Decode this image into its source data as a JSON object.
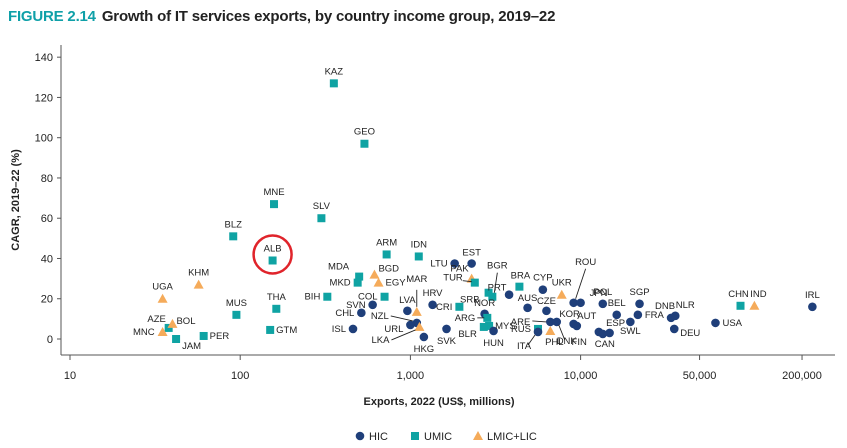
{
  "figure": {
    "number": "FIGURE 2.14",
    "title": "Growth of IT services exports, by country income group, 2019–22"
  },
  "chart_data": {
    "type": "scatter",
    "title": "Growth of IT services exports, by country income group, 2019–22",
    "xlabel": "Exports, 2022 (US$, millions)",
    "ylabel": "CAGR, 2019–22 (%)",
    "xscale": "log",
    "xlim": [
      10,
      230000
    ],
    "ylim": [
      -8,
      145
    ],
    "xticks": [
      10,
      100,
      1000,
      10000,
      50000,
      200000
    ],
    "xtick_labels": [
      "10",
      "100",
      "1,000",
      "10,000",
      "50,000",
      "200,000"
    ],
    "yticks": [
      0,
      20,
      40,
      60,
      80,
      100,
      120,
      140
    ],
    "ytick_labels": [
      "0",
      "20",
      "40",
      "60",
      "80",
      "100",
      "120",
      "140"
    ],
    "grid": false,
    "legend_position": "bottom-center",
    "highlight": {
      "code": "ALB",
      "style": "red-circle",
      "color": "#e0242b"
    },
    "groups": [
      {
        "name": "HIC",
        "marker": "circle",
        "color": "#1f3f7a"
      },
      {
        "name": "UMIC",
        "marker": "square",
        "color": "#0fa3a3"
      },
      {
        "name": "LMIC+LIC",
        "marker": "triangle",
        "color": "#f5ab5a"
      }
    ],
    "points": [
      {
        "code": "KAZ",
        "group": "UMIC",
        "x": 355,
        "y": 127
      },
      {
        "code": "GEO",
        "group": "UMIC",
        "x": 537,
        "y": 97
      },
      {
        "code": "MNE",
        "group": "UMIC",
        "x": 158,
        "y": 67
      },
      {
        "code": "SLV",
        "group": "UMIC",
        "x": 300,
        "y": 60
      },
      {
        "code": "BLZ",
        "group": "UMIC",
        "x": 91,
        "y": 51
      },
      {
        "code": "ALB",
        "group": "UMIC",
        "x": 155,
        "y": 39
      },
      {
        "code": "ARM",
        "group": "UMIC",
        "x": 725,
        "y": 42
      },
      {
        "code": "IDN",
        "group": "UMIC",
        "x": 1120,
        "y": 41
      },
      {
        "code": "KHM",
        "group": "LMIC+LIC",
        "x": 57,
        "y": 27
      },
      {
        "code": "UGA",
        "group": "LMIC+LIC",
        "x": 35,
        "y": 20
      },
      {
        "code": "MUS",
        "group": "UMIC",
        "x": 95,
        "y": 12
      },
      {
        "code": "THA",
        "group": "UMIC",
        "x": 163,
        "y": 15
      },
      {
        "code": "AZE",
        "group": "UMIC",
        "x": 38,
        "y": 5.5
      },
      {
        "code": "BOL",
        "group": "LMIC+LIC",
        "x": 40,
        "y": 7.5
      },
      {
        "code": "MNC",
        "group": "LMIC+LIC",
        "x": 35,
        "y": 3.5
      },
      {
        "code": "JAM",
        "group": "UMIC",
        "x": 42,
        "y": 0
      },
      {
        "code": "PER",
        "group": "UMIC",
        "x": 61,
        "y": 1.5
      },
      {
        "code": "GTM",
        "group": "UMIC",
        "x": 150,
        "y": 4.5
      },
      {
        "code": "BIH",
        "group": "UMIC",
        "x": 325,
        "y": 21
      },
      {
        "code": "MDA",
        "group": "UMIC",
        "x": 500,
        "y": 31
      },
      {
        "code": "MKD",
        "group": "UMIC",
        "x": 490,
        "y": 28
      },
      {
        "code": "BGD",
        "group": "LMIC+LIC",
        "x": 615,
        "y": 32
      },
      {
        "code": "EGY",
        "group": "LMIC+LIC",
        "x": 650,
        "y": 28
      },
      {
        "code": "COL",
        "group": "UMIC",
        "x": 705,
        "y": 21
      },
      {
        "code": "SVN",
        "group": "HIC",
        "x": 600,
        "y": 17
      },
      {
        "code": "CHL",
        "group": "HIC",
        "x": 515,
        "y": 13
      },
      {
        "code": "ISL",
        "group": "HIC",
        "x": 460,
        "y": 5
      },
      {
        "code": "LVA",
        "group": "HIC",
        "x": 960,
        "y": 14
      },
      {
        "code": "MAR",
        "group": "LMIC+LIC",
        "x": 1090,
        "y": 13.5
      },
      {
        "code": "HRV",
        "group": "HIC",
        "x": 1350,
        "y": 17
      },
      {
        "code": "NZL",
        "group": "HIC",
        "x": 1090,
        "y": 8
      },
      {
        "code": "URL",
        "group": "HIC",
        "x": 1000,
        "y": 7
      },
      {
        "code": "LKA",
        "group": "LMIC+LIC",
        "x": 1130,
        "y": 6
      },
      {
        "code": "HKG",
        "group": "HIC",
        "x": 1200,
        "y": 1
      },
      {
        "code": "SVK",
        "group": "HIC",
        "x": 1630,
        "y": 5
      },
      {
        "code": "LTU",
        "group": "HIC",
        "x": 1820,
        "y": 37.5
      },
      {
        "code": "EST",
        "group": "HIC",
        "x": 2290,
        "y": 37.5
      },
      {
        "code": "CRI",
        "group": "UMIC",
        "x": 1940,
        "y": 16
      },
      {
        "code": "PAK",
        "group": "LMIC+LIC",
        "x": 2290,
        "y": 30
      },
      {
        "code": "TUR",
        "group": "UMIC",
        "x": 2390,
        "y": 28
      },
      {
        "code": "SRB",
        "group": "UMIC",
        "x": 2880,
        "y": 23
      },
      {
        "code": "BGR",
        "group": "UMIC",
        "x": 3030,
        "y": 21
      },
      {
        "code": "PRT",
        "group": "HIC",
        "x": 3800,
        "y": 22
      },
      {
        "code": "BRA",
        "group": "UMIC",
        "x": 4370,
        "y": 26
      },
      {
        "code": "CYP",
        "group": "HIC",
        "x": 6000,
        "y": 24.5
      },
      {
        "code": "UKR",
        "group": "LMIC+LIC",
        "x": 7750,
        "y": 22
      },
      {
        "code": "AUS",
        "group": "HIC",
        "x": 4880,
        "y": 15.5
      },
      {
        "code": "CZE",
        "group": "HIC",
        "x": 6300,
        "y": 14
      },
      {
        "code": "NOR",
        "group": "HIC",
        "x": 2730,
        "y": 12.5
      },
      {
        "code": "ARG",
        "group": "UMIC",
        "x": 2830,
        "y": 10.5
      },
      {
        "code": "MYS",
        "group": "UMIC",
        "x": 2900,
        "y": 6.5
      },
      {
        "code": "BLR",
        "group": "UMIC",
        "x": 2700,
        "y": 6
      },
      {
        "code": "HUN",
        "group": "HIC",
        "x": 3080,
        "y": 4
      },
      {
        "code": "ARE",
        "group": "HIC",
        "x": 6640,
        "y": 8.5
      },
      {
        "code": "DNK",
        "group": "HIC",
        "x": 7240,
        "y": 8.5
      },
      {
        "code": "RUS",
        "group": "UMIC",
        "x": 5620,
        "y": 5
      },
      {
        "code": "ITA",
        "group": "HIC",
        "x": 5620,
        "y": 3.5
      },
      {
        "code": "PHL",
        "group": "LMIC+LIC",
        "x": 6640,
        "y": 4
      },
      {
        "code": "ROU",
        "group": "HIC",
        "x": 9100,
        "y": 18
      },
      {
        "code": "JPN",
        "group": "HIC",
        "x": 10000,
        "y": 18
      },
      {
        "code": "POL",
        "group": "HIC",
        "x": 13500,
        "y": 17.5
      },
      {
        "code": "SGP",
        "group": "HIC",
        "x": 22200,
        "y": 17.5
      },
      {
        "code": "BEL",
        "group": "HIC",
        "x": 16300,
        "y": 12
      },
      {
        "code": "FRA",
        "group": "HIC",
        "x": 21700,
        "y": 12
      },
      {
        "code": "SWL",
        "group": "HIC",
        "x": 19600,
        "y": 8.5
      },
      {
        "code": "DNB",
        "group": "HIC",
        "x": 34000,
        "y": 10.5
      },
      {
        "code": "NLR",
        "group": "HIC",
        "x": 36000,
        "y": 11.5
      },
      {
        "code": "DEU",
        "group": "HIC",
        "x": 35500,
        "y": 5
      },
      {
        "code": "KOR",
        "group": "HIC",
        "x": 9100,
        "y": 7.5
      },
      {
        "code": "AUT",
        "group": "HIC",
        "x": 9500,
        "y": 6.5
      },
      {
        "code": "ESP",
        "group": "HIC",
        "x": 14800,
        "y": 3
      },
      {
        "code": "FIN",
        "group": "HIC",
        "x": 12800,
        "y": 3.5
      },
      {
        "code": "CAN",
        "group": "HIC",
        "x": 13500,
        "y": 2.5
      },
      {
        "code": "USA",
        "group": "HIC",
        "x": 62000,
        "y": 8
      },
      {
        "code": "CHN",
        "group": "UMIC",
        "x": 87000,
        "y": 16.5
      },
      {
        "code": "IND",
        "group": "LMIC+LIC",
        "x": 105000,
        "y": 16.5
      },
      {
        "code": "IRL",
        "group": "HIC",
        "x": 230000,
        "y": 16
      }
    ]
  }
}
